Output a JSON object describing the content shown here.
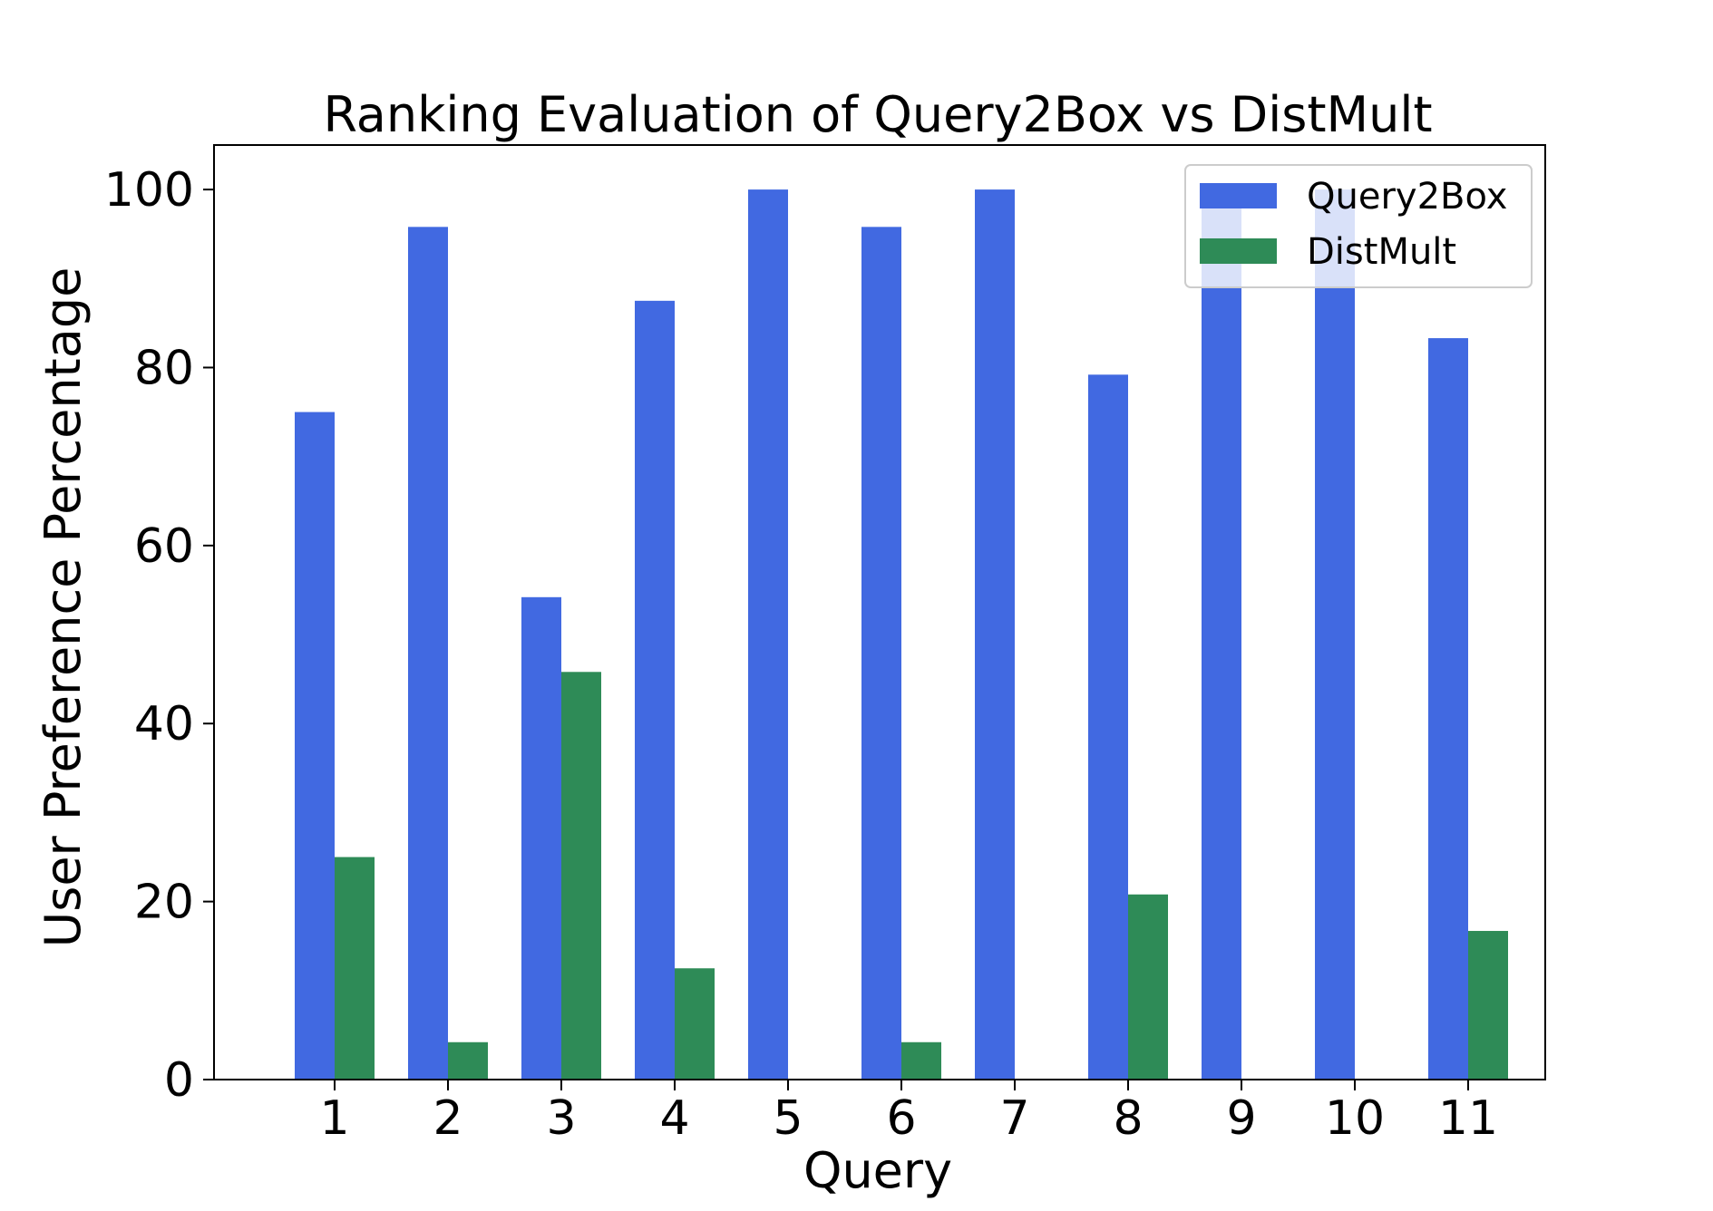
{
  "chart_data": {
    "type": "bar",
    "title": "Ranking Evaluation of Query2Box vs DistMult",
    "xlabel": "Query",
    "ylabel": "User Preference Percentage",
    "categories": [
      "1",
      "2",
      "3",
      "4",
      "5",
      "6",
      "7",
      "8",
      "9",
      "10",
      "11"
    ],
    "series": [
      {
        "name": "Query2Box",
        "color": "#4169e1",
        "values": [
          75.0,
          95.8,
          54.2,
          87.5,
          100.0,
          95.8,
          100.0,
          79.2,
          100.0,
          100.0,
          83.3
        ]
      },
      {
        "name": "DistMult",
        "color": "#2e8b57",
        "values": [
          25.0,
          4.2,
          45.8,
          12.5,
          0.0,
          4.2,
          0.0,
          20.8,
          0.0,
          0.0,
          16.7
        ]
      }
    ],
    "yticks": [
      0,
      20,
      40,
      60,
      80,
      100
    ],
    "ylim": [
      0,
      105
    ],
    "grid": false,
    "legend_position": "top-right"
  }
}
